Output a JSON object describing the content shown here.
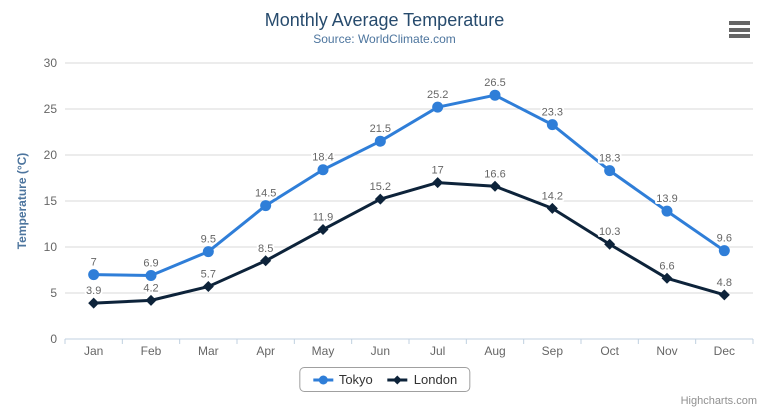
{
  "chart": {
    "title": "Monthly Average Temperature",
    "subtitle": "Source: WorldClimate.com",
    "credits": "Highcharts.com"
  },
  "icons": {
    "context_menu": "hamburger-menu-icon"
  },
  "colors": {
    "background": "#ffffff",
    "title": "#274b6d",
    "subtitle": "#4d759e",
    "axis_title": "#4d759e",
    "tick_label": "#666666",
    "data_label": "#666666",
    "grid": "#d8d8d8",
    "axis_line": "#c0d0e0",
    "legend_border": "#a0a0a0",
    "legend_text": "#333333",
    "credits": "#909090",
    "menu_icon": "#666666"
  },
  "chart_data": {
    "type": "line",
    "title": "Monthly Average Temperature",
    "subtitle": "Source: WorldClimate.com",
    "xlabel": "",
    "ylabel": "Temperature (°C)",
    "categories": [
      "Jan",
      "Feb",
      "Mar",
      "Apr",
      "May",
      "Jun",
      "Jul",
      "Aug",
      "Sep",
      "Oct",
      "Nov",
      "Dec"
    ],
    "series": [
      {
        "name": "Tokyo",
        "color": "#2f7ed8",
        "marker": "circle",
        "values": [
          7,
          6.9,
          9.5,
          14.5,
          18.4,
          21.5,
          25.2,
          26.5,
          23.3,
          18.3,
          13.9,
          9.6
        ]
      },
      {
        "name": "London",
        "color": "#0d233a",
        "marker": "diamond",
        "values": [
          3.9,
          4.2,
          5.7,
          8.5,
          11.9,
          15.2,
          17,
          16.6,
          14.2,
          10.3,
          6.6,
          4.8
        ]
      }
    ],
    "ylim": [
      0,
      30
    ],
    "yticks": [
      0,
      5,
      10,
      15,
      20,
      25,
      30
    ],
    "grid": true,
    "data_labels": true,
    "legend_position": "bottom"
  }
}
